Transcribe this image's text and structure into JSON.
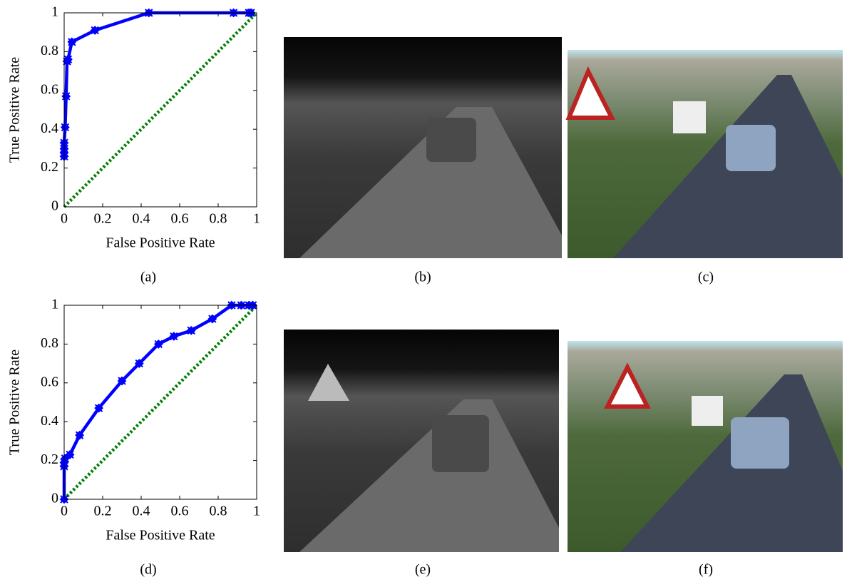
{
  "chart_data": [
    {
      "type": "line",
      "xlabel": "False Positive Rate",
      "ylabel": "True Positive Rate",
      "xlim": [
        0,
        1
      ],
      "ylim": [
        0,
        1
      ],
      "xticks": [
        0,
        0.2,
        0.4,
        0.6,
        0.8,
        1
      ],
      "yticks": [
        0,
        0.2,
        0.4,
        0.6,
        0.8,
        1
      ],
      "series": [
        {
          "color": "#0000ff",
          "style": "solid",
          "markers": true,
          "x": [
            0,
            0,
            0,
            0,
            0.005,
            0.01,
            0.015,
            0.02,
            0.04,
            0.16,
            0.44,
            0.88,
            0.96,
            0.97
          ],
          "values": [
            0.26,
            0.28,
            0.3,
            0.33,
            0.41,
            0.57,
            0.75,
            0.76,
            0.85,
            0.91,
            1,
            1,
            1,
            1
          ]
        },
        {
          "color": "#008000",
          "style": "dotted",
          "markers": false,
          "x": [
            0,
            1
          ],
          "values": [
            0,
            1
          ]
        }
      ]
    },
    {
      "type": "line",
      "xlabel": "False Positive Rate",
      "ylabel": "True Positive Rate",
      "xlim": [
        0,
        1
      ],
      "ylim": [
        0,
        1
      ],
      "xticks": [
        0,
        0.2,
        0.4,
        0.6,
        0.8,
        1
      ],
      "yticks": [
        0,
        0.2,
        0.4,
        0.6,
        0.8,
        1
      ],
      "series": [
        {
          "color": "#0000ff",
          "style": "solid",
          "markers": true,
          "x": [
            0,
            0,
            0,
            0.005,
            0.03,
            0.08,
            0.18,
            0.3,
            0.39,
            0.49,
            0.57,
            0.66,
            0.77,
            0.87,
            0.92,
            0.96,
            0.98
          ],
          "values": [
            0,
            0.17,
            0.19,
            0.21,
            0.23,
            0.33,
            0.47,
            0.61,
            0.7,
            0.8,
            0.84,
            0.87,
            0.93,
            1,
            1,
            1,
            1
          ]
        },
        {
          "color": "#008000",
          "style": "dotted",
          "markers": false,
          "x": [
            0,
            1
          ],
          "values": [
            0,
            1
          ]
        }
      ]
    }
  ],
  "captions": [
    "(a)",
    "(b)",
    "(c)",
    "(d)",
    "(e)",
    "(f)"
  ]
}
